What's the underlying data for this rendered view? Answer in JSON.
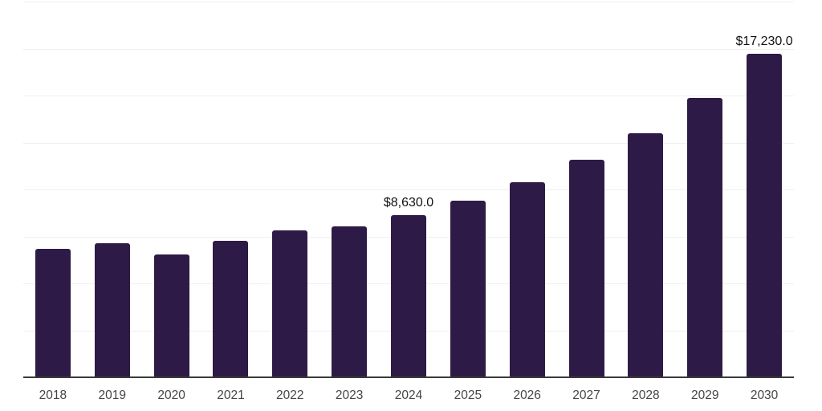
{
  "chart_data": {
    "type": "bar",
    "title": "",
    "xlabel": "",
    "ylabel": "",
    "categories": [
      "2018",
      "2019",
      "2020",
      "2021",
      "2022",
      "2023",
      "2024",
      "2025",
      "2026",
      "2027",
      "2028",
      "2029",
      "2030"
    ],
    "values": [
      6850,
      7150,
      6550,
      7270,
      7820,
      8040,
      8630,
      9390,
      10370,
      11590,
      13000,
      14860,
      17230
    ],
    "value_labels": [
      {
        "category": "2024",
        "text": "$8,630.0"
      },
      {
        "category": "2030",
        "text": "$17,230.0"
      }
    ],
    "ylim": [
      0,
      20000
    ],
    "grid_step": 2500,
    "grid": "horizontal-only",
    "y_axis_tick_labels": "none",
    "legend": "none",
    "colors": {
      "bar": "#2E1A47",
      "grid_line": "#EFEFEF",
      "axis_line": "#3A3A3A",
      "tick_label": "#454545",
      "value_label": "#121212",
      "background": "#FFFFFF"
    }
  }
}
